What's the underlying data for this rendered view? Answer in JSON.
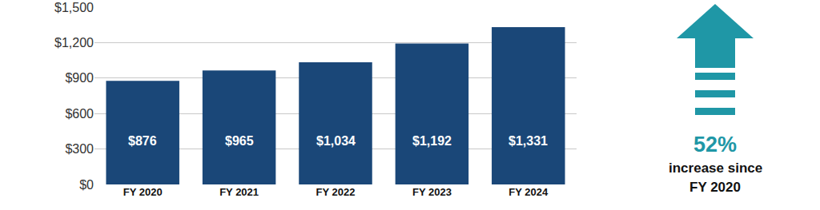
{
  "chart_data": {
    "type": "bar",
    "categories": [
      "FY 2020",
      "FY 2021",
      "FY 2022",
      "FY 2023",
      "FY 2024"
    ],
    "values": [
      876,
      965,
      1034,
      1192,
      1331
    ],
    "value_labels": [
      "$876",
      "$965",
      "$1,034",
      "$1,192",
      "$1,331"
    ],
    "data_labels": true,
    "color": "#1a4778",
    "ylim": [
      0,
      1500
    ],
    "yticks": [
      {
        "value": 0,
        "label": "$0"
      },
      {
        "value": 300,
        "label": "$300"
      },
      {
        "value": 600,
        "label": "$600"
      },
      {
        "value": 900,
        "label": "$900"
      },
      {
        "value": 1200,
        "label": "$1,200"
      },
      {
        "value": 1500,
        "label": "$1,500"
      }
    ],
    "grid": true,
    "annotations": [
      "52%",
      "increase since",
      "FY 2020"
    ]
  }
}
